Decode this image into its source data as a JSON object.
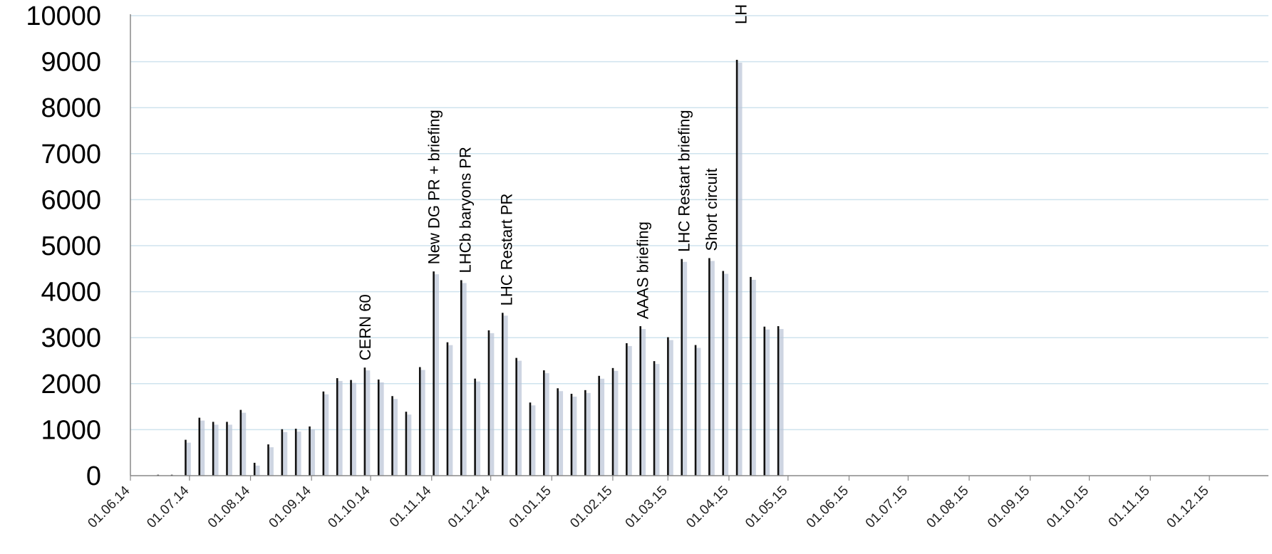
{
  "chart_data": {
    "type": "bar",
    "title": "",
    "xlabel": "",
    "ylabel": "",
    "ylim": [
      0,
      10000
    ],
    "yticks": [
      0,
      1000,
      2000,
      3000,
      4000,
      5000,
      6000,
      7000,
      8000,
      9000,
      10000
    ],
    "xlim": [
      "2014-06-01",
      "2015-12-31"
    ],
    "xticks": [
      {
        "date": "2014-06-01",
        "label": "01.06.14"
      },
      {
        "date": "2014-07-01",
        "label": "01.07.14"
      },
      {
        "date": "2014-08-01",
        "label": "01.08.14"
      },
      {
        "date": "2014-09-01",
        "label": "01.09.14"
      },
      {
        "date": "2014-10-01",
        "label": "01.10.14"
      },
      {
        "date": "2014-11-01",
        "label": "01.11.14"
      },
      {
        "date": "2014-12-01",
        "label": "01.12.14"
      },
      {
        "date": "2015-01-01",
        "label": "01.01.15"
      },
      {
        "date": "2015-02-01",
        "label": "01.02.15"
      },
      {
        "date": "2015-03-01",
        "label": "01.03.15"
      },
      {
        "date": "2015-04-01",
        "label": "01.04.15"
      },
      {
        "date": "2015-05-01",
        "label": "01.05.15"
      },
      {
        "date": "2015-06-01",
        "label": "01.06.15"
      },
      {
        "date": "2015-07-01",
        "label": "01.07.15"
      },
      {
        "date": "2015-08-01",
        "label": "01.08.15"
      },
      {
        "date": "2015-09-01",
        "label": "01.09.15"
      },
      {
        "date": "2015-10-01",
        "label": "01.10.15"
      },
      {
        "date": "2015-11-01",
        "label": "01.11.15"
      },
      {
        "date": "2015-12-01",
        "label": "01.12.15"
      }
    ],
    "grid": true,
    "legend": "none",
    "bar_color": "#111111",
    "grid_color": "#cfe3ee",
    "points": [
      {
        "date": "2014-06-15",
        "value": 20
      },
      {
        "date": "2014-06-22",
        "value": 20
      },
      {
        "date": "2014-06-29",
        "value": 780
      },
      {
        "date": "2014-07-06",
        "value": 1260
      },
      {
        "date": "2014-07-13",
        "value": 1170
      },
      {
        "date": "2014-07-20",
        "value": 1170
      },
      {
        "date": "2014-07-27",
        "value": 1430
      },
      {
        "date": "2014-08-03",
        "value": 280
      },
      {
        "date": "2014-08-10",
        "value": 680
      },
      {
        "date": "2014-08-17",
        "value": 1010
      },
      {
        "date": "2014-08-24",
        "value": 1020
      },
      {
        "date": "2014-08-31",
        "value": 1070
      },
      {
        "date": "2014-09-07",
        "value": 1830
      },
      {
        "date": "2014-09-14",
        "value": 2120
      },
      {
        "date": "2014-09-21",
        "value": 2080
      },
      {
        "date": "2014-09-28",
        "value": 2350
      },
      {
        "date": "2014-10-05",
        "value": 2090
      },
      {
        "date": "2014-10-12",
        "value": 1730
      },
      {
        "date": "2014-10-19",
        "value": 1390
      },
      {
        "date": "2014-10-26",
        "value": 2360
      },
      {
        "date": "2014-11-02",
        "value": 4440
      },
      {
        "date": "2014-11-09",
        "value": 2900
      },
      {
        "date": "2014-11-16",
        "value": 4250
      },
      {
        "date": "2014-11-23",
        "value": 2110
      },
      {
        "date": "2014-11-30",
        "value": 3160
      },
      {
        "date": "2014-12-07",
        "value": 3540
      },
      {
        "date": "2014-12-14",
        "value": 2560
      },
      {
        "date": "2014-12-21",
        "value": 1590
      },
      {
        "date": "2014-12-28",
        "value": 2290
      },
      {
        "date": "2015-01-04",
        "value": 1900
      },
      {
        "date": "2015-01-11",
        "value": 1780
      },
      {
        "date": "2015-01-18",
        "value": 1860
      },
      {
        "date": "2015-01-25",
        "value": 2170
      },
      {
        "date": "2015-02-01",
        "value": 2340
      },
      {
        "date": "2015-02-08",
        "value": 2880
      },
      {
        "date": "2015-02-15",
        "value": 3250
      },
      {
        "date": "2015-02-22",
        "value": 2490
      },
      {
        "date": "2015-03-01",
        "value": 3010
      },
      {
        "date": "2015-03-08",
        "value": 4710
      },
      {
        "date": "2015-03-15",
        "value": 2840
      },
      {
        "date": "2015-03-22",
        "value": 4730
      },
      {
        "date": "2015-03-29",
        "value": 4450
      },
      {
        "date": "2015-04-05",
        "value": 9040
      },
      {
        "date": "2015-04-12",
        "value": 4320
      },
      {
        "date": "2015-04-19",
        "value": 3240
      },
      {
        "date": "2015-04-26",
        "value": 3250
      }
    ],
    "annotations": [
      {
        "text": "CERN 60",
        "date": "2014-09-28"
      },
      {
        "text": "New DG PR + briefing",
        "date": "2014-11-02"
      },
      {
        "text": "LHCb baryons PR",
        "date": "2014-11-18"
      },
      {
        "text": "LHC Restart PR",
        "date": "2014-12-09"
      },
      {
        "text": "AAAS briefing",
        "date": "2015-02-16"
      },
      {
        "text": "LHC Restart briefing",
        "date": "2015-03-09"
      },
      {
        "text": "Short circuit",
        "date": "2015-03-23"
      },
      {
        "text": "LH",
        "date": "2015-04-07"
      }
    ]
  }
}
